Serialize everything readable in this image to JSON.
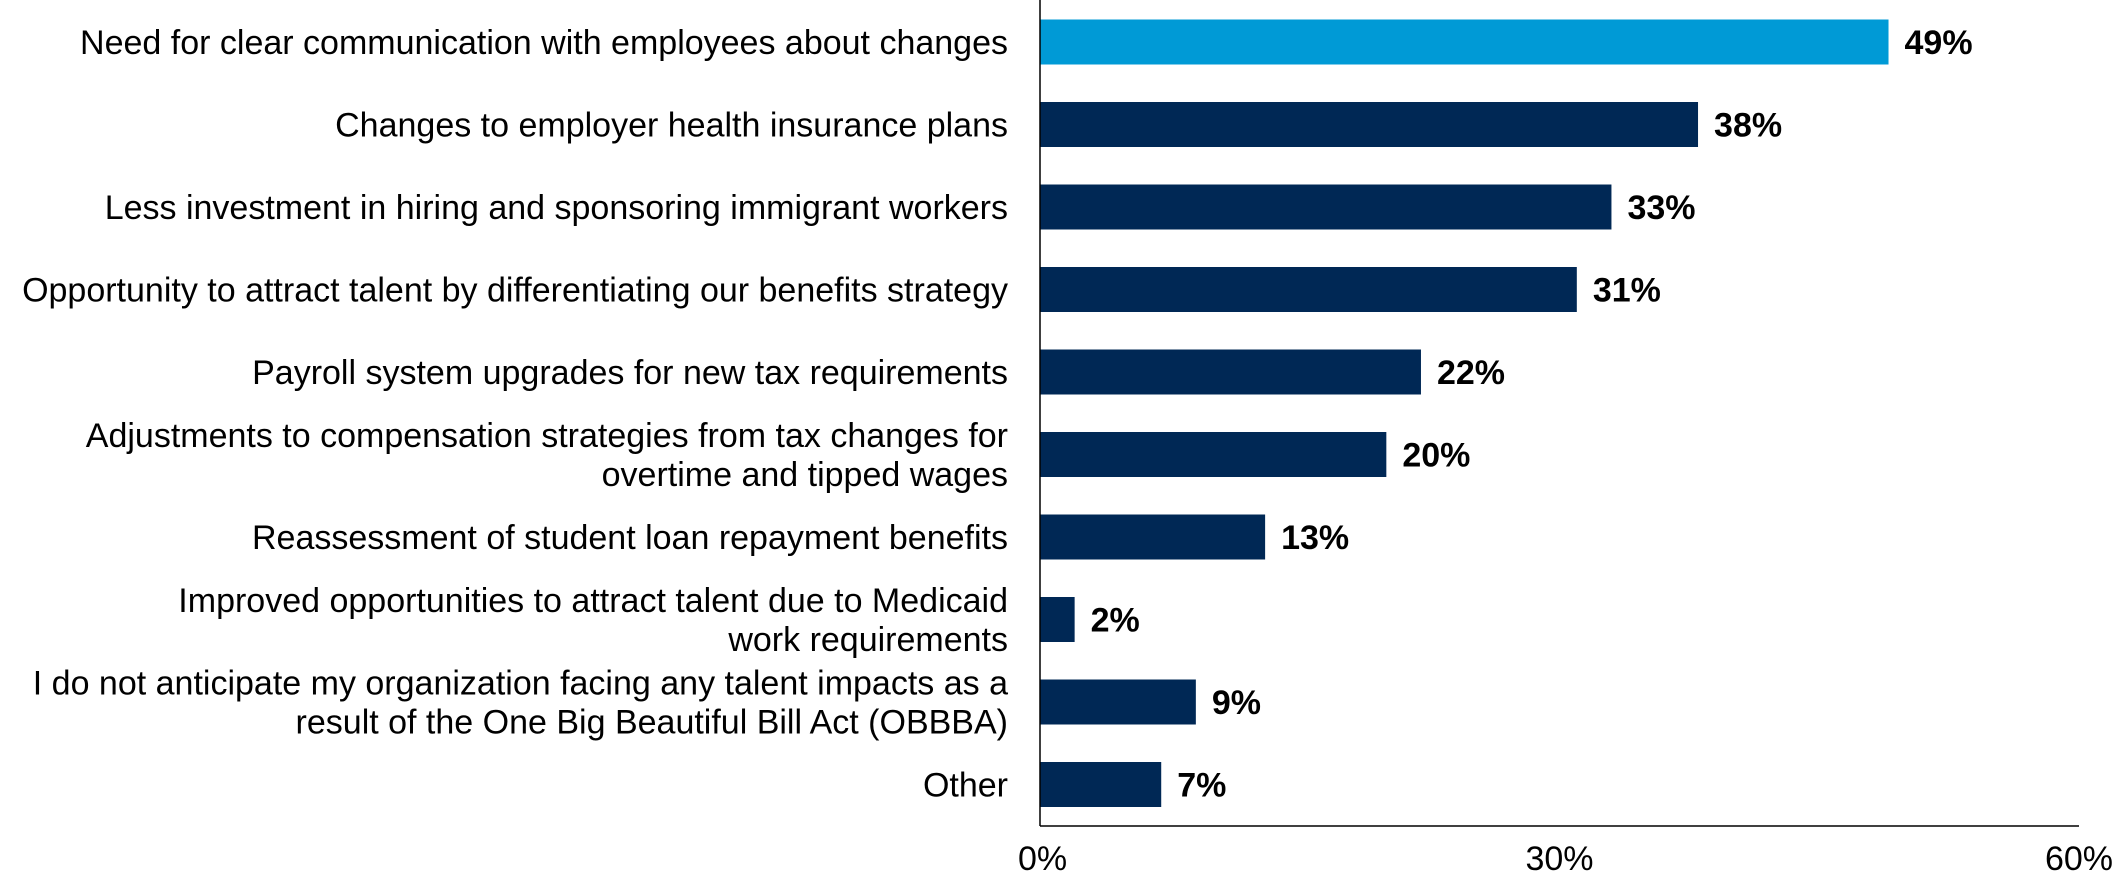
{
  "chart_data": {
    "type": "bar",
    "orientation": "horizontal",
    "categories": [
      [
        "Need for clear communication with employees about changes"
      ],
      [
        "Changes to employer health insurance plans"
      ],
      [
        "Less investment in hiring and sponsoring immigrant workers"
      ],
      [
        "Opportunity to attract talent by differentiating our benefits strategy"
      ],
      [
        "Payroll system upgrades for new tax requirements"
      ],
      [
        "Adjustments to compensation strategies from tax changes for",
        "overtime and tipped wages"
      ],
      [
        "Reassessment of student loan repayment benefits"
      ],
      [
        "Improved opportunities to attract talent due to Medicaid",
        "work requirements"
      ],
      [
        "I do not anticipate my organization facing any talent impacts as a",
        "result of the One Big Beautiful Bill Act (OBBBA)"
      ],
      [
        "Other"
      ]
    ],
    "values": [
      49,
      38,
      33,
      31,
      22,
      20,
      13,
      2,
      9,
      7
    ],
    "value_labels": [
      "49%",
      "38%",
      "33%",
      "31%",
      "22%",
      "20%",
      "13%",
      "2%",
      "9%",
      "7%"
    ],
    "highlight_index": 0,
    "xlim": [
      0,
      60
    ],
    "xticks": [
      0,
      30,
      60
    ],
    "xtick_labels": [
      "0%",
      "30%",
      "60%"
    ],
    "grid": false,
    "legend": "none",
    "colors": {
      "highlight": "#009ad6",
      "bar": "#002855",
      "axis": "#000000"
    }
  }
}
